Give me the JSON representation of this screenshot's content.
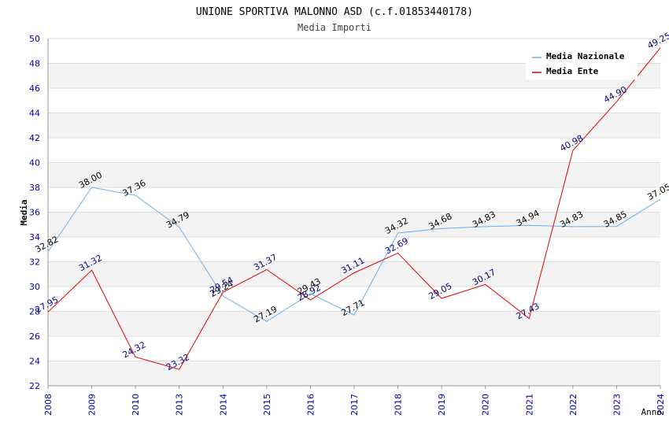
{
  "chart_data": {
    "type": "line",
    "title": "UNIONE SPORTIVA MALONNO ASD (c.f.01853440178)",
    "subtitle": "Media Importi",
    "xlabel": "Anno",
    "ylabel": "Media",
    "categories": [
      "2008",
      "2009",
      "2010",
      "2013",
      "2014",
      "2015",
      "2016",
      "2017",
      "2018",
      "2019",
      "2020",
      "2021",
      "2022",
      "2023",
      "2024"
    ],
    "ylim": [
      22,
      50
    ],
    "yticks": [
      22,
      24,
      26,
      28,
      30,
      32,
      34,
      36,
      38,
      40,
      42,
      44,
      46,
      48,
      50
    ],
    "grid": true,
    "legend_position": "top-right",
    "series": [
      {
        "name": "Media Nazionale",
        "color": "#6ab0ee",
        "values": [
          32.82,
          38.0,
          37.36,
          34.79,
          29.24,
          27.19,
          29.43,
          27.71,
          34.32,
          34.68,
          34.83,
          34.94,
          34.83,
          34.85,
          37.05
        ],
        "labels": [
          "32.82",
          "38.00",
          "37.36",
          "34.79",
          "29.24",
          "27.19",
          "29.43",
          "27.71",
          "34.32",
          "34.68",
          "34.83",
          "34.94",
          "34.83",
          "34.85",
          "37.05"
        ]
      },
      {
        "name": "Media Ente",
        "color": "#e00000",
        "values": [
          27.95,
          31.32,
          24.32,
          23.32,
          29.54,
          31.37,
          28.92,
          31.11,
          32.69,
          29.05,
          30.17,
          27.43,
          40.98,
          44.9,
          49.25
        ],
        "labels": [
          "27.95",
          "31.32",
          "24.32",
          "23.32",
          "29.54",
          "31.37",
          "28.92",
          "31.11",
          "32.69",
          "29.05",
          "30.17",
          "27.43",
          "40.98",
          "44.90",
          "49.25"
        ]
      }
    ]
  }
}
